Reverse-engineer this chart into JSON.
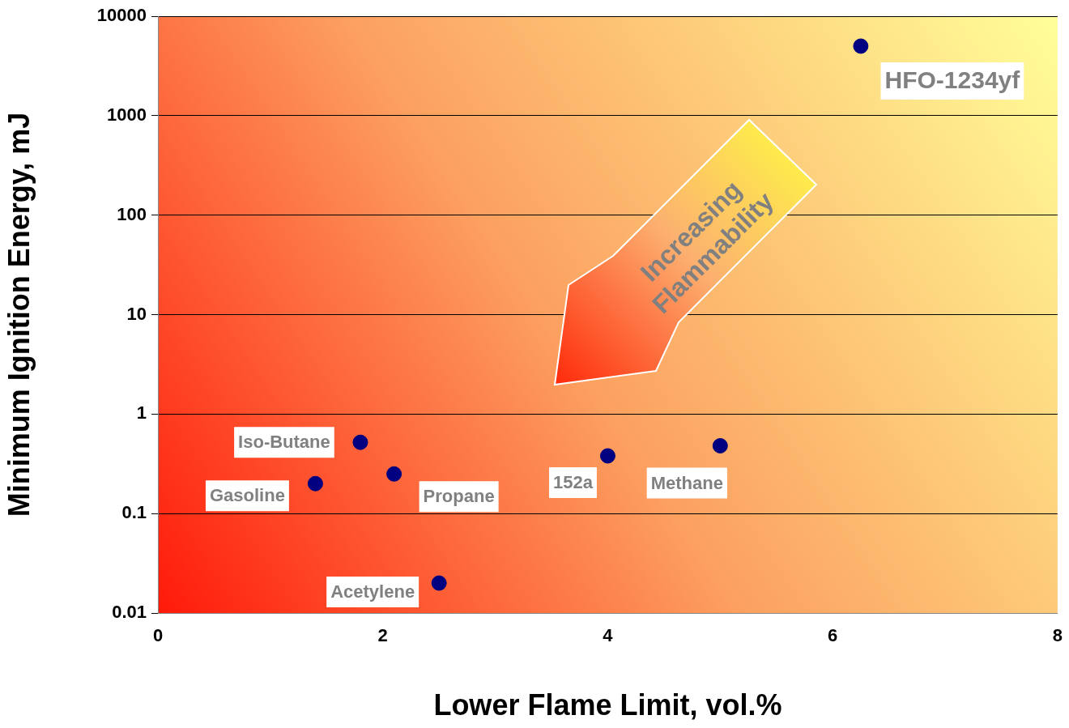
{
  "chart_data": {
    "type": "scatter",
    "xlabel": "Lower Flame Limit, vol.%",
    "ylabel": "Minimum Ignition Energy, mJ",
    "log": "y",
    "grid": "y",
    "legend": false,
    "marker": "circle",
    "xlim": [
      0,
      8
    ],
    "xticks": [
      0,
      2,
      4,
      6,
      8
    ],
    "ylim": [
      0.01,
      10000
    ],
    "yticks": [
      0.01,
      0.1,
      1,
      10,
      100,
      1000,
      10000
    ],
    "series": [
      {
        "color": "#000080",
        "x": [
          1.4,
          1.8,
          2.1,
          2.5,
          4.0,
          5.0,
          6.25
        ],
        "values": [
          0.2,
          0.52,
          0.25,
          0.02,
          0.38,
          0.48,
          5000
        ]
      }
    ],
    "annotations": [
      {
        "text": "Gasoline",
        "x": 1.4,
        "y": 0.2
      },
      {
        "text": "Iso-Butane",
        "x": 1.8,
        "y": 0.52
      },
      {
        "text": "Propane",
        "x": 2.1,
        "y": 0.25
      },
      {
        "text": "Acetylene",
        "x": 2.5,
        "y": 0.02
      },
      {
        "text": "152a",
        "x": 4.0,
        "y": 0.38
      },
      {
        "text": "Methane",
        "x": 5.0,
        "y": 0.48
      },
      {
        "text": "HFO-1234yf",
        "x": 6.25,
        "y": 5000
      },
      "Increasing Flammability"
    ]
  }
}
